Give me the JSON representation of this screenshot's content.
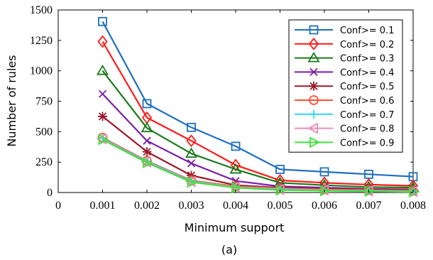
{
  "chart_data": {
    "type": "line",
    "xlabel": "Minimum support",
    "ylabel": "Number of rules",
    "caption": "(a)",
    "x_ticks": [
      "0",
      "0.001",
      "0.002",
      "0.003",
      "0.004",
      "0.005",
      "0.006",
      "0.007",
      "0.008"
    ],
    "y_ticks": [
      "0",
      "250",
      "500",
      "750",
      "1000",
      "1250",
      "1500"
    ],
    "xlim": [
      0,
      0.008
    ],
    "ylim": [
      0,
      1500
    ],
    "grid": false,
    "legend_position": "top-right",
    "x": [
      0.001,
      0.002,
      0.003,
      0.004,
      0.005,
      0.006,
      0.007,
      0.008
    ],
    "series": [
      {
        "name": "Conf>= 0.1",
        "color": "#1f6fbf",
        "marker": "square",
        "values": [
          1405,
          730,
          535,
          380,
          190,
          170,
          150,
          130
        ]
      },
      {
        "name": "Conf>= 0.2",
        "color": "#ff1a1a",
        "marker": "diamond",
        "values": [
          1240,
          615,
          425,
          225,
          100,
          80,
          65,
          55
        ]
      },
      {
        "name": "Conf>= 0.3",
        "color": "#1a7a1a",
        "marker": "triangle-up",
        "values": [
          1000,
          530,
          320,
          190,
          80,
          60,
          45,
          40
        ]
      },
      {
        "name": "Conf>= 0.4",
        "color": "#7a1fa8",
        "marker": "x",
        "values": [
          810,
          425,
          240,
          95,
          50,
          40,
          30,
          25
        ]
      },
      {
        "name": "Conf>= 0.5",
        "color": "#9a1a2a",
        "marker": "star",
        "values": [
          625,
          335,
          140,
          60,
          40,
          30,
          25,
          20
        ]
      },
      {
        "name": "Conf>= 0.6",
        "color": "#ff5030",
        "marker": "circle",
        "values": [
          450,
          260,
          100,
          50,
          35,
          25,
          20,
          15
        ]
      },
      {
        "name": "Conf>= 0.7",
        "color": "#2ad8f5",
        "marker": "plus",
        "values": [
          445,
          255,
          95,
          45,
          30,
          20,
          15,
          10
        ]
      },
      {
        "name": "Conf>= 0.8",
        "color": "#f08ab8",
        "marker": "triangle-left",
        "values": [
          440,
          250,
          90,
          45,
          25,
          20,
          12,
          8
        ]
      },
      {
        "name": "Conf>= 0.9",
        "color": "#3ee03e",
        "marker": "triangle-right",
        "values": [
          435,
          245,
          85,
          40,
          20,
          15,
          10,
          5
        ]
      }
    ]
  }
}
